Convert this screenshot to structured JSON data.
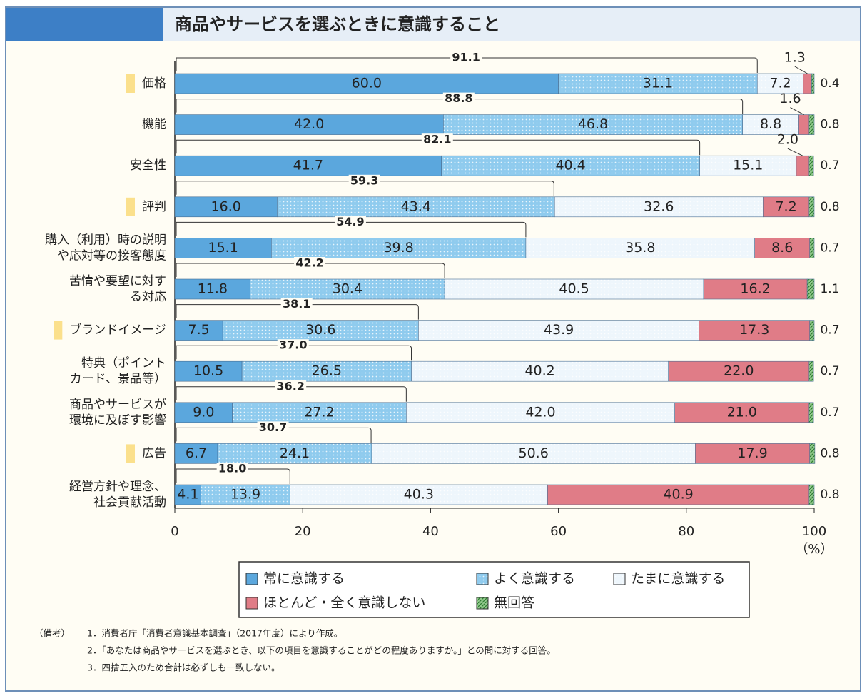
{
  "chart_data": {
    "type": "stacked-barh",
    "title": "商品やサービスを選ぶときに意識すること",
    "categories": [
      "価格",
      "機能",
      "安全性",
      "評判",
      "購入（利用）時の説明\nや応対等の接客態度",
      "苦情や要望に対す\nる対応",
      "ブランドイメージ",
      "特典（ポイント\nカード、景品等）",
      "商品やサービスが\n環境に及ぼす影響",
      "広告",
      "経営方針や理念、\n社会貢献活動"
    ],
    "highlight": [
      true,
      false,
      false,
      true,
      false,
      false,
      true,
      false,
      false,
      true,
      false
    ],
    "series": [
      {
        "name": "常に意識する",
        "color": "#5ba7dd",
        "pattern": "solid",
        "values": [
          60.0,
          42.0,
          41.7,
          16.0,
          15.1,
          11.8,
          7.5,
          10.5,
          9.0,
          6.7,
          4.1
        ],
        "value_labels": [
          "60.0",
          "42.0",
          "41.7",
          "16.0",
          "15.1",
          "11.8",
          "7.5",
          "10.5",
          "9.0",
          "6.7",
          "4.1"
        ]
      },
      {
        "name": "よく意識する",
        "color": "#8fcbee",
        "pattern": "dots",
        "values": [
          31.1,
          46.8,
          40.4,
          43.4,
          39.8,
          30.4,
          30.6,
          26.5,
          27.2,
          24.1,
          13.9
        ],
        "value_labels": [
          "31.1",
          "46.8",
          "40.4",
          "43.4",
          "39.8",
          "30.4",
          "30.6",
          "26.5",
          "27.2",
          "24.1",
          "13.9"
        ]
      },
      {
        "name": "たまに意識する",
        "color": "#eef6fc",
        "pattern": "dots",
        "values": [
          7.2,
          8.8,
          15.1,
          32.6,
          35.8,
          40.5,
          43.9,
          40.2,
          42.0,
          50.6,
          40.3
        ],
        "value_labels": [
          "7.2",
          "8.8",
          "15.1",
          "32.6",
          "35.8",
          "40.5",
          "43.9",
          "40.2",
          "42.0",
          "50.6",
          "40.3"
        ]
      },
      {
        "name": "ほとんど・全く意識しない",
        "color": "#e07c87",
        "pattern": "solid",
        "values": [
          1.3,
          1.6,
          2.0,
          7.2,
          8.6,
          16.2,
          17.3,
          22.0,
          21.0,
          17.9,
          40.9
        ],
        "value_labels": [
          "1.3",
          "1.6",
          "2.0",
          "7.2",
          "8.6",
          "16.2",
          "17.3",
          "22.0",
          "21.0",
          "17.9",
          "40.9"
        ]
      },
      {
        "name": "無回答",
        "color": "#8fc78a",
        "pattern": "hatch",
        "values": [
          0.4,
          0.8,
          0.7,
          0.8,
          0.7,
          1.1,
          0.7,
          0.7,
          0.7,
          0.8,
          0.8
        ],
        "value_labels": [
          "0.4",
          "0.8",
          "0.7",
          "0.8",
          "0.7",
          "1.1",
          "0.7",
          "0.7",
          "0.7",
          "0.8",
          "0.8"
        ]
      }
    ],
    "bracket_totals": {
      "values": [
        91.1,
        88.8,
        82.1,
        59.3,
        54.9,
        42.2,
        38.1,
        37.0,
        36.2,
        30.7,
        18.0
      ],
      "value_labels": [
        "91.1",
        "88.8",
        "82.1",
        "59.3",
        "54.9",
        "42.2",
        "38.1",
        "37.0",
        "36.2",
        "30.7",
        "18.0"
      ]
    },
    "xlim": [
      0,
      100
    ],
    "xticks": [
      0,
      20,
      40,
      60,
      80,
      100
    ],
    "x_unit": "（%）",
    "notes": {
      "label": "（備考）",
      "items": [
        "1．消費者庁「消費者意識基本調査」（2017年度）により作成。",
        "2．「あなたは商品やサービスを選ぶとき、以下の項目を意識することがどの程度ありますか。」との問に対する回答。",
        "3．四捨五入のため合計は必ずしも一致しない。"
      ]
    }
  }
}
